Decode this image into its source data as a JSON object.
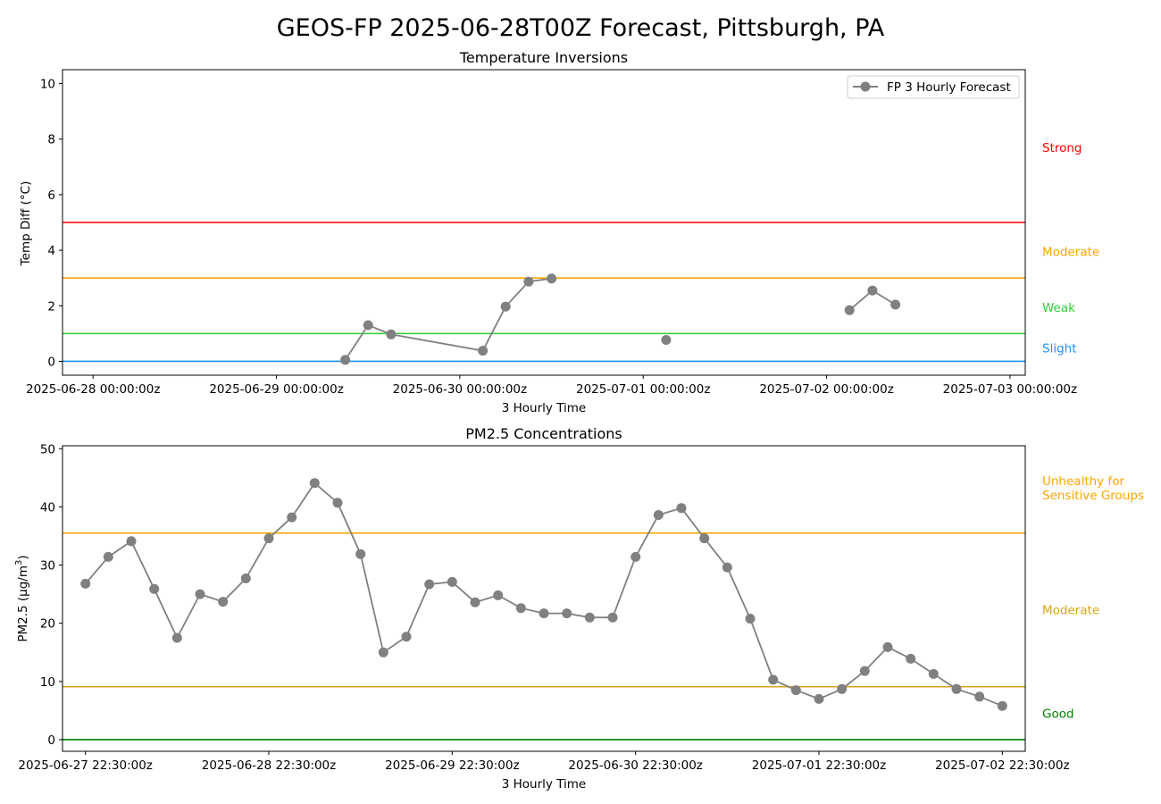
{
  "figure": {
    "title": "GEOS-FP 2025-06-28T00Z Forecast, Pittsburgh, PA"
  },
  "colors": {
    "series": "#808080",
    "strong": "#ff0000",
    "moderate_orange": "#ffa500",
    "weak": "#32cd32",
    "slight": "#1e90ff",
    "moderate_pm": "#daa520",
    "good": "#008000",
    "axis": "#000000"
  },
  "chart_data": [
    {
      "type": "line",
      "title": "Temperature Inversions",
      "xlabel": "3 Hourly Time",
      "ylabel": "Temp Diff (°C)",
      "xlim": [
        "2025-06-27T20:00",
        "2025-07-03T02:00"
      ],
      "ylim": [
        -0.5,
        10.5
      ],
      "grid": false,
      "legend": {
        "placement": "top-right",
        "entries": [
          "FP 3 Hourly Forecast"
        ]
      },
      "x_ticks": [
        {
          "value": "2025-06-28T00:00",
          "label": "2025-06-28 00:00:00z"
        },
        {
          "value": "2025-06-29T00:00",
          "label": "2025-06-29 00:00:00z"
        },
        {
          "value": "2025-06-30T00:00",
          "label": "2025-06-30 00:00:00z"
        },
        {
          "value": "2025-07-01T00:00",
          "label": "2025-07-01 00:00:00z"
        },
        {
          "value": "2025-07-02T00:00",
          "label": "2025-07-02 00:00:00z"
        },
        {
          "value": "2025-07-03T00:00",
          "label": "2025-07-03 00:00:00z"
        }
      ],
      "y_ticks": [
        0,
        2,
        4,
        6,
        8,
        10
      ],
      "thresholds": [
        {
          "value": 5,
          "color": "#ff0000"
        },
        {
          "value": 3,
          "color": "#ffa500"
        },
        {
          "value": 1,
          "color": "#32cd32"
        },
        {
          "value": 0,
          "color": "#1e90ff"
        }
      ],
      "category_labels": [
        {
          "text": "Strong",
          "y": 7.7,
          "color": "#ff0000"
        },
        {
          "text": "Moderate",
          "y": 3.95,
          "color": "#ffa500"
        },
        {
          "text": "Weak",
          "y": 1.95,
          "color": "#32cd32"
        },
        {
          "text": "Slight",
          "y": 0.48,
          "color": "#1e90ff"
        }
      ],
      "series": [
        {
          "name": "FP 3 Hourly Forecast",
          "color": "#808080",
          "x": [
            "2025-06-29T06:00",
            "2025-06-29T09:00",
            "2025-06-29T12:00",
            "2025-06-29T15:00",
            "2025-06-30T03:00",
            "2025-06-30T06:00",
            "2025-06-30T09:00",
            "2025-06-30T12:00",
            "2025-06-30T15:00",
            "2025-07-01T00:00",
            "2025-07-01T03:00",
            "2025-07-01T06:00",
            "2025-07-02T03:00",
            "2025-07-02T06:00",
            "2025-07-02T09:00"
          ],
          "y": [
            null,
            0.05,
            1.3,
            0.97,
            0.38,
            1.97,
            2.87,
            2.98,
            null,
            null,
            0.77,
            null,
            1.84,
            2.55,
            2.04
          ]
        }
      ]
    },
    {
      "type": "line",
      "title": "PM2.5 Concentrations",
      "xlabel": "3 Hourly Time",
      "ylabel": "PM2.5 (µg/m³)",
      "xlim": [
        "2025-06-27T19:30",
        "2025-07-03T01:30"
      ],
      "ylim": [
        -2,
        50.5
      ],
      "grid": false,
      "x_ticks": [
        {
          "value": "2025-06-27T22:30",
          "label": "2025-06-27 22:30:00z"
        },
        {
          "value": "2025-06-28T22:30",
          "label": "2025-06-28 22:30:00z"
        },
        {
          "value": "2025-06-29T22:30",
          "label": "2025-06-29 22:30:00z"
        },
        {
          "value": "2025-06-30T22:30",
          "label": "2025-06-30 22:30:00z"
        },
        {
          "value": "2025-07-01T22:30",
          "label": "2025-07-01 22:30:00z"
        },
        {
          "value": "2025-07-02T22:30",
          "label": "2025-07-02 22:30:00z"
        }
      ],
      "y_ticks": [
        0,
        10,
        20,
        30,
        40,
        50
      ],
      "thresholds": [
        {
          "value": 35.5,
          "color": "#ffa500"
        },
        {
          "value": 9.1,
          "color": "#daa520"
        },
        {
          "value": 0,
          "color": "#008000"
        }
      ],
      "category_labels": [
        {
          "text": "Unhealthy for\nSensitive Groups",
          "y": 43.3,
          "color": "#ffa500"
        },
        {
          "text": "Moderate",
          "y": 22.3,
          "color": "#daa520"
        },
        {
          "text": "Good",
          "y": 4.5,
          "color": "#008000"
        }
      ],
      "series": [
        {
          "name": "FP 3 Hourly Forecast",
          "color": "#808080",
          "x_start": "2025-06-27T22:30",
          "x_step_hours": 3,
          "y": [
            26.8,
            31.4,
            34.1,
            25.9,
            17.5,
            25.0,
            23.7,
            27.7,
            34.6,
            38.2,
            44.1,
            40.7,
            31.9,
            15.0,
            17.7,
            26.7,
            27.1,
            23.6,
            24.8,
            22.6,
            21.7,
            21.7,
            21.0,
            21.0,
            31.4,
            38.6,
            39.8,
            34.6,
            29.6,
            20.8,
            10.3,
            8.5,
            7.0,
            8.7,
            11.8,
            15.9,
            13.9,
            11.3,
            8.7,
            7.4,
            5.8
          ]
        }
      ]
    }
  ]
}
